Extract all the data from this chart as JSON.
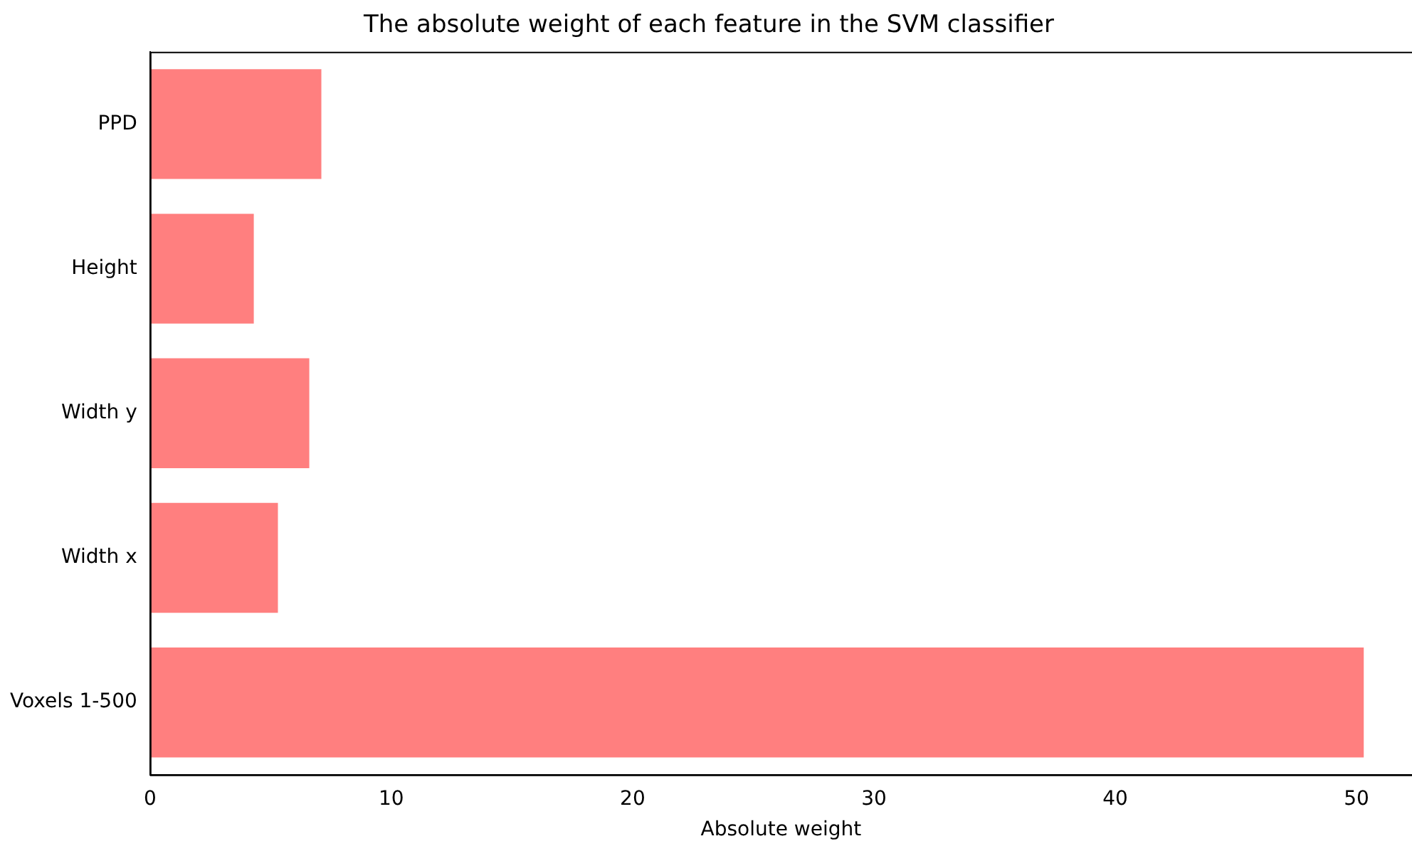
{
  "chart_data": {
    "type": "bar",
    "orientation": "horizontal",
    "title": "The absolute weight of each feature in the SVM classifier",
    "xlabel": "Absolute weight",
    "categories": [
      "PPD",
      "Height",
      "Width y",
      "Width x",
      "Voxels 1-500"
    ],
    "values": [
      7.1,
      4.3,
      6.6,
      5.3,
      50.3
    ],
    "color": "#ff7f7f",
    "xlim": [
      0,
      52.3
    ],
    "xticks": [
      0,
      10,
      20,
      30,
      40,
      50
    ],
    "grid": false,
    "legend": false
  }
}
